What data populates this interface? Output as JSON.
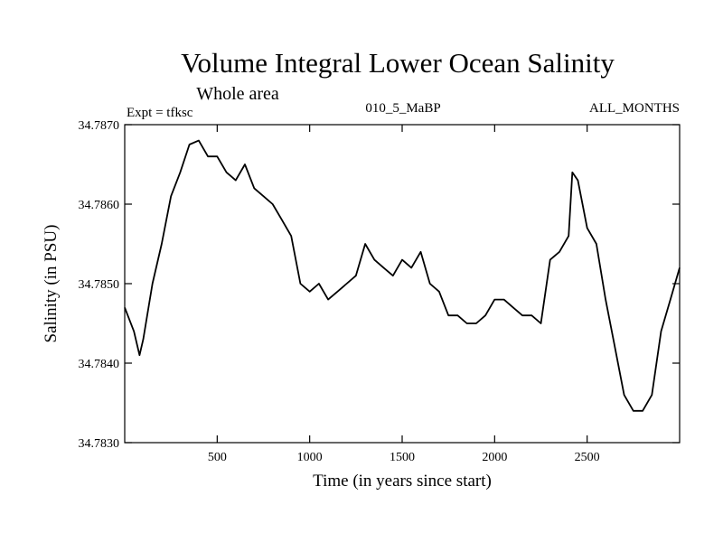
{
  "chart_data": {
    "type": "line",
    "title": "Volume Integral Lower Ocean Salinity",
    "subtitle": "Whole area",
    "experiment": "Expt = tfksc",
    "run_id": "010_5_MaBP",
    "months": "ALL_MONTHS",
    "xlabel": "Time (in years since start)",
    "ylabel": "Salinity (in PSU)",
    "xlim": [
      0,
      3000
    ],
    "ylim": [
      34.783,
      34.787
    ],
    "x_ticks": [
      500,
      1000,
      1500,
      2000,
      2500
    ],
    "x_tick_labels": [
      "500",
      "1000",
      "1500",
      "2000",
      "2500"
    ],
    "y_ticks": [
      34.783,
      34.784,
      34.785,
      34.786,
      34.787
    ],
    "y_tick_labels": [
      "34.7830",
      "34.7840",
      "34.7850",
      "34.7860",
      "34.7870"
    ],
    "grid": false,
    "series": [
      {
        "name": "Salinity",
        "x": [
          0,
          50,
          80,
          100,
          150,
          200,
          250,
          300,
          350,
          400,
          450,
          500,
          550,
          600,
          650,
          700,
          750,
          800,
          850,
          900,
          950,
          1000,
          1050,
          1100,
          1150,
          1200,
          1250,
          1300,
          1350,
          1400,
          1450,
          1500,
          1550,
          1600,
          1650,
          1700,
          1750,
          1800,
          1850,
          1900,
          1950,
          2000,
          2050,
          2100,
          2150,
          2200,
          2250,
          2300,
          2350,
          2400,
          2420,
          2450,
          2500,
          2550,
          2600,
          2650,
          2700,
          2750,
          2800,
          2850,
          2900,
          2950,
          3000
        ],
        "values": [
          34.7847,
          34.7844,
          34.7841,
          34.7843,
          34.785,
          34.7855,
          34.7861,
          34.7864,
          34.78675,
          34.7868,
          34.7866,
          34.7866,
          34.7864,
          34.7863,
          34.7865,
          34.7862,
          34.7861,
          34.786,
          34.7858,
          34.7856,
          34.785,
          34.7849,
          34.785,
          34.7848,
          34.7849,
          34.785,
          34.7851,
          34.7855,
          34.7853,
          34.7852,
          34.7851,
          34.7853,
          34.7852,
          34.7854,
          34.785,
          34.7849,
          34.7846,
          34.7846,
          34.7845,
          34.7845,
          34.7846,
          34.7848,
          34.7848,
          34.7847,
          34.7846,
          34.7846,
          34.7845,
          34.7853,
          34.7854,
          34.7856,
          34.7864,
          34.7863,
          34.7857,
          34.7855,
          34.7848,
          34.7842,
          34.7836,
          34.7834,
          34.7834,
          34.7836,
          34.7844,
          34.7848,
          34.7852
        ]
      }
    ]
  }
}
